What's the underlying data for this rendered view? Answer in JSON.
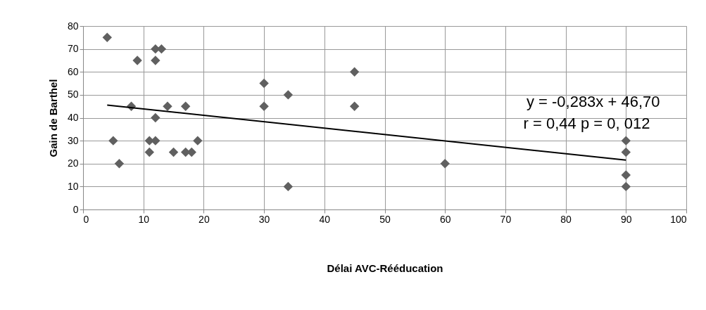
{
  "chart_data": {
    "type": "scatter",
    "xlabel": "Délai AVC-Rééducation",
    "ylabel": "Gain de Barthel",
    "xlim": [
      0,
      100
    ],
    "xticks": [
      0,
      10,
      20,
      30,
      40,
      50,
      60,
      70,
      80,
      90,
      100
    ],
    "ylim": [
      0,
      80
    ],
    "yticks": [
      0,
      10,
      20,
      30,
      40,
      50,
      60,
      70,
      80
    ],
    "grid": true,
    "annotations": [
      "y = -0,283x + 46,70",
      "r = 0,44  p =  0, 012"
    ],
    "series": [
      {
        "marker": "diamond",
        "color": "#606060",
        "x": [
          4,
          5,
          6,
          8,
          9,
          11,
          11,
          12,
          12,
          12,
          12,
          13,
          14,
          15,
          17,
          17,
          18,
          19,
          30,
          30,
          34,
          34,
          45,
          45,
          60,
          90,
          90,
          90,
          90
        ],
        "values": [
          75,
          30,
          20,
          45,
          65,
          30,
          25,
          70,
          65,
          40,
          30,
          70,
          45,
          25,
          45,
          25,
          25,
          30,
          55,
          45,
          50,
          10,
          60,
          45,
          20,
          30,
          25,
          15,
          10
        ]
      },
      {
        "type": "line",
        "marker": "none",
        "color": "#000000",
        "line_style": "solid",
        "x": [
          4,
          90
        ],
        "values": [
          45.5,
          21.5
        ]
      }
    ]
  }
}
